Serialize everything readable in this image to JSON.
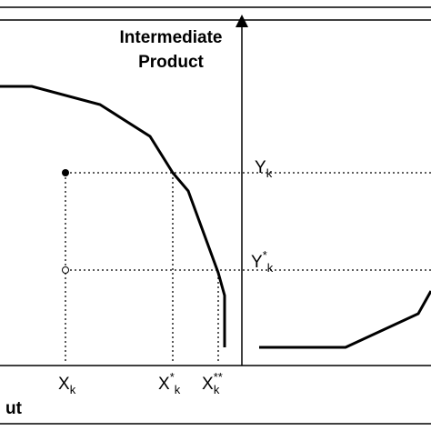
{
  "axis_title": {
    "lines": [
      "Intermediate",
      "Product"
    ]
  },
  "y_labels": [
    {
      "base": "Y",
      "sub": "k"
    },
    {
      "base": "Y",
      "sup": "*",
      "sub": "k"
    }
  ],
  "x_labels": [
    {
      "base": "X",
      "sub": "k"
    },
    {
      "base": "X",
      "sup": "*",
      "sub": "k"
    },
    {
      "base": "X",
      "sup": "**",
      "sub": "k"
    }
  ],
  "corner_label": "ut"
}
